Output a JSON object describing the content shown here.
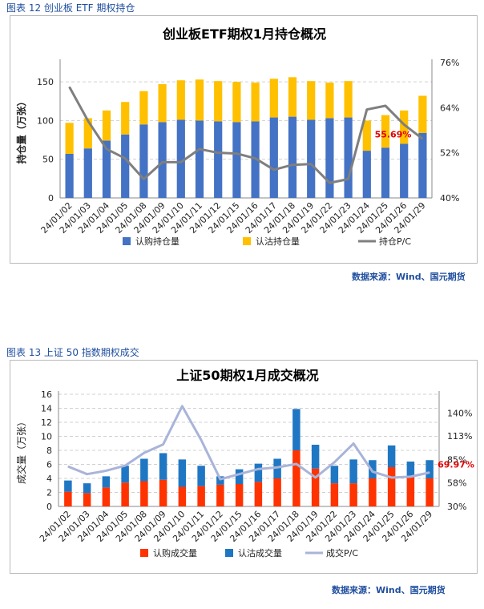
{
  "figures": [
    {
      "label": "图表 12  创业板 ETF 期权持仓",
      "source": "数据来源：Wind、国元期货"
    },
    {
      "label": "图表 13  上证 50 指数期权成交",
      "source": "数据来源：Wind、国元期货"
    }
  ],
  "chart_data": [
    {
      "type": "bar",
      "title": "创业板ETF期权1月持仓概况",
      "ylabel": "持仓量（万张）",
      "ylim": [
        0,
        175
      ],
      "yticks": [
        "0",
        "50",
        "100",
        "150"
      ],
      "y2lim": [
        40,
        76
      ],
      "y2ticks": [
        "40%",
        "52%",
        "64%",
        "76%"
      ],
      "categories": [
        "24/01/02",
        "24/01/03",
        "24/01/04",
        "24/01/05",
        "24/01/08",
        "24/01/09",
        "24/01/10",
        "24/01/11",
        "24/01/12",
        "24/01/15",
        "24/01/16",
        "24/01/17",
        "24/01/18",
        "24/01/19",
        "24/01/22",
        "24/01/23",
        "24/01/24",
        "24/01/25",
        "24/01/26",
        "24/01/29"
      ],
      "stacked": true,
      "series": [
        {
          "name": "认购持仓量",
          "kind": "bar",
          "color": "#4472c4",
          "values": [
            57,
            64,
            74,
            82,
            95,
            98,
            101,
            100,
            99,
            98,
            99,
            104,
            105,
            101,
            103,
            104,
            61,
            65,
            70,
            84
          ]
        },
        {
          "name": "认沽持仓量",
          "kind": "bar",
          "color": "#ffc000",
          "values": [
            40,
            39,
            39,
            42,
            43,
            49,
            51,
            53,
            52,
            52,
            50,
            50,
            51,
            50,
            46,
            47,
            39,
            42,
            43,
            48
          ]
        },
        {
          "name": "持仓P/C",
          "kind": "line",
          "axis": "right",
          "color": "#7f7f7f",
          "values": [
            69.5,
            60.5,
            53.0,
            50.5,
            45.0,
            49.5,
            49.5,
            53.0,
            52.0,
            51.8,
            50.5,
            47.5,
            48.8,
            49.0,
            44.0,
            45.0,
            63.5,
            64.5,
            59.5,
            55.69
          ]
        }
      ],
      "annotation": {
        "text": "55.69%",
        "color": "#e00000"
      },
      "legend": "bottom"
    },
    {
      "type": "bar",
      "title": "上证50期权1月成交概况",
      "ylabel": "成交量（万张）",
      "ylim": [
        0,
        16
      ],
      "yticks": [
        "0",
        "2",
        "4",
        "6",
        "8",
        "10",
        "12",
        "14",
        "16"
      ],
      "y2lim": [
        30,
        162
      ],
      "y2ticks": [
        "30%",
        "58%",
        "85%",
        "113%",
        "140%"
      ],
      "y2tick_values": [
        30,
        58,
        85,
        113,
        140
      ],
      "categories": [
        "24/01/02",
        "24/01/03",
        "24/01/04",
        "24/01/05",
        "24/01/08",
        "24/01/09",
        "24/01/10",
        "24/01/11",
        "24/01/12",
        "24/01/15",
        "24/01/16",
        "24/01/17",
        "24/01/18",
        "24/01/19",
        "24/01/22",
        "24/01/23",
        "24/01/24",
        "24/01/25",
        "24/01/26",
        "24/01/29"
      ],
      "stacked": true,
      "series": [
        {
          "name": "认购成交量",
          "kind": "bar",
          "color": "#ff3300",
          "values": [
            2.1,
            1.9,
            2.7,
            3.4,
            3.6,
            3.8,
            2.8,
            2.9,
            3.1,
            3.2,
            3.5,
            4.0,
            8.0,
            5.4,
            3.3,
            3.3,
            4.0,
            5.6,
            4.2,
            4.0
          ]
        },
        {
          "name": "认沽成交量",
          "kind": "bar",
          "color": "#1f77c4",
          "values": [
            1.6,
            1.4,
            1.6,
            2.4,
            3.2,
            3.8,
            3.9,
            2.9,
            1.2,
            2.1,
            2.6,
            2.8,
            5.9,
            3.4,
            2.5,
            3.4,
            2.6,
            3.1,
            2.2,
            2.6
          ]
        },
        {
          "name": "成交P/C",
          "kind": "line",
          "axis": "right",
          "color": "#a9b4d9",
          "values": [
            77,
            68,
            72,
            78,
            93,
            103,
            148,
            108,
            62,
            68,
            74,
            76,
            80,
            64,
            82,
            104,
            71,
            64,
            65,
            69.97
          ]
        }
      ],
      "annotation": {
        "text": "69.97%",
        "color": "#e00000"
      },
      "legend": "bottom"
    }
  ]
}
